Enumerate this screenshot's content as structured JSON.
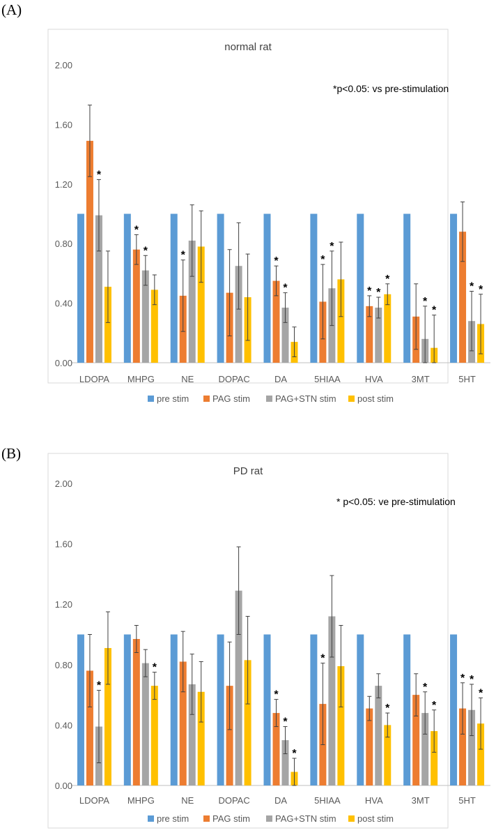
{
  "panels": [
    {
      "label": "(A)",
      "chart_data": {
        "type": "bar",
        "title": "normal rat",
        "annotation": "*p<0.05: vs pre-stimulation",
        "xlabel": "",
        "ylabel": "",
        "ylim": [
          0,
          2.0
        ],
        "yticks": [
          "0.00",
          "0.40",
          "0.80",
          "1.20",
          "1.60",
          "2.00"
        ],
        "categories": [
          "LDOPA",
          "MHPG",
          "NE",
          "DOPAC",
          "DA",
          "5HIAA",
          "HVA",
          "3MT",
          "5HT"
        ],
        "series": [
          {
            "name": "pre stim",
            "color": "#5B9BD5",
            "values": [
              1.0,
              1.0,
              1.0,
              1.0,
              1.0,
              1.0,
              1.0,
              1.0,
              1.0
            ],
            "errors": [
              0,
              0,
              0,
              0,
              0,
              0,
              0,
              0,
              0
            ],
            "sig": [
              false,
              false,
              false,
              false,
              false,
              false,
              false,
              false,
              false
            ]
          },
          {
            "name": "PAG stim",
            "color": "#ED7D31",
            "values": [
              1.49,
              0.76,
              0.45,
              0.47,
              0.55,
              0.41,
              0.38,
              0.31,
              0.88
            ],
            "errors": [
              0.24,
              0.1,
              0.24,
              0.29,
              0.1,
              0.25,
              0.07,
              0.22,
              0.2
            ],
            "sig": [
              false,
              true,
              true,
              false,
              true,
              true,
              true,
              false,
              false
            ]
          },
          {
            "name": "PAG+STN stim",
            "color": "#A5A5A5",
            "values": [
              0.99,
              0.62,
              0.82,
              0.65,
              0.37,
              0.5,
              0.37,
              0.16,
              0.28
            ],
            "errors": [
              0.24,
              0.1,
              0.24,
              0.29,
              0.1,
              0.25,
              0.07,
              0.22,
              0.2
            ],
            "sig": [
              true,
              true,
              false,
              false,
              true,
              true,
              true,
              true,
              true
            ]
          },
          {
            "name": "post stim",
            "color": "#FFC000",
            "values": [
              0.51,
              0.49,
              0.78,
              0.44,
              0.14,
              0.56,
              0.46,
              0.1,
              0.26
            ],
            "errors": [
              0.24,
              0.1,
              0.24,
              0.29,
              0.1,
              0.25,
              0.07,
              0.22,
              0.2
            ],
            "sig": [
              false,
              false,
              false,
              false,
              false,
              false,
              true,
              true,
              true
            ]
          }
        ],
        "legend_position": "bottom"
      }
    },
    {
      "label": "(B)",
      "chart_data": {
        "type": "bar",
        "title": "PD rat",
        "annotation": "* p<0.05: ve pre-stimulation",
        "xlabel": "",
        "ylabel": "",
        "ylim": [
          0,
          2.0
        ],
        "yticks": [
          "0.00",
          "0.40",
          "0.80",
          "1.20",
          "1.60",
          "2.00"
        ],
        "categories": [
          "LDOPA",
          "MHPG",
          "NE",
          "DOPAC",
          "DA",
          "5HIAA",
          "HVA",
          "3MT",
          "5HT"
        ],
        "series": [
          {
            "name": "pre stim",
            "color": "#5B9BD5",
            "values": [
              1.0,
              1.0,
              1.0,
              1.0,
              1.0,
              1.0,
              1.0,
              1.0,
              1.0
            ],
            "errors": [
              0,
              0,
              0,
              0,
              0,
              0,
              0,
              0,
              0
            ],
            "sig": [
              false,
              false,
              false,
              false,
              false,
              false,
              false,
              false,
              false
            ]
          },
          {
            "name": "PAG stim",
            "color": "#ED7D31",
            "values": [
              0.76,
              0.97,
              0.82,
              0.66,
              0.48,
              0.54,
              0.51,
              0.6,
              0.51
            ],
            "errors": [
              0.24,
              0.09,
              0.2,
              0.29,
              0.09,
              0.27,
              0.08,
              0.14,
              0.17
            ],
            "sig": [
              false,
              false,
              false,
              false,
              true,
              true,
              false,
              false,
              true
            ]
          },
          {
            "name": "PAG+STN stim",
            "color": "#A5A5A5",
            "values": [
              0.39,
              0.81,
              0.67,
              1.29,
              0.3,
              1.12,
              0.66,
              0.48,
              0.5
            ],
            "errors": [
              0.24,
              0.09,
              0.2,
              0.29,
              0.09,
              0.27,
              0.08,
              0.14,
              0.17
            ],
            "sig": [
              true,
              false,
              false,
              false,
              true,
              false,
              false,
              true,
              true
            ]
          },
          {
            "name": "post stim",
            "color": "#FFC000",
            "values": [
              0.91,
              0.66,
              0.62,
              0.83,
              0.09,
              0.79,
              0.4,
              0.36,
              0.41
            ],
            "errors": [
              0.24,
              0.09,
              0.2,
              0.29,
              0.09,
              0.27,
              0.08,
              0.14,
              0.17
            ],
            "sig": [
              false,
              true,
              false,
              false,
              true,
              false,
              true,
              true,
              true
            ]
          }
        ],
        "legend_position": "bottom"
      }
    }
  ]
}
